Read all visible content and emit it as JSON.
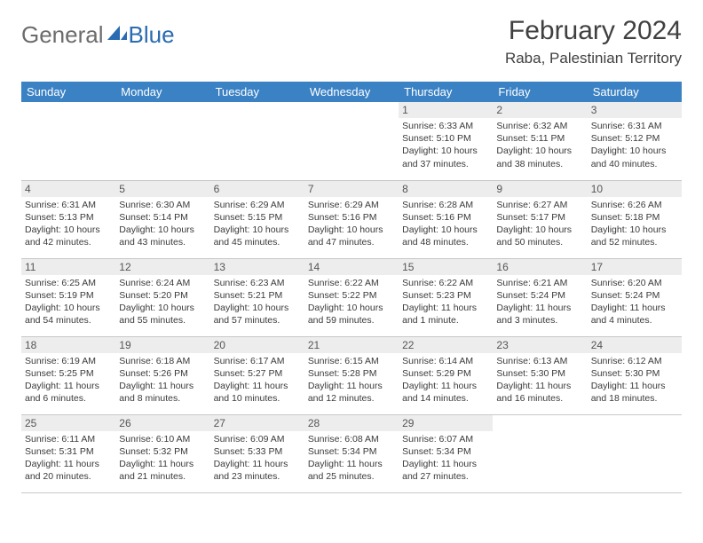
{
  "logo": {
    "text1": "General",
    "text2": "Blue"
  },
  "title": "February 2024",
  "location": "Raba, Palestinian Territory",
  "colors": {
    "header_bg": "#3b82c4",
    "header_text": "#ffffff",
    "daynum_bg": "#ededed",
    "border": "#c8c8c8",
    "logo_gray": "#6c6c6c",
    "logo_blue": "#2a6bb2"
  },
  "weekdays": [
    "Sunday",
    "Monday",
    "Tuesday",
    "Wednesday",
    "Thursday",
    "Friday",
    "Saturday"
  ],
  "weeks": [
    [
      null,
      null,
      null,
      null,
      {
        "n": "1",
        "sunrise": "6:33 AM",
        "sunset": "5:10 PM",
        "daylight": "10 hours and 37 minutes."
      },
      {
        "n": "2",
        "sunrise": "6:32 AM",
        "sunset": "5:11 PM",
        "daylight": "10 hours and 38 minutes."
      },
      {
        "n": "3",
        "sunrise": "6:31 AM",
        "sunset": "5:12 PM",
        "daylight": "10 hours and 40 minutes."
      }
    ],
    [
      {
        "n": "4",
        "sunrise": "6:31 AM",
        "sunset": "5:13 PM",
        "daylight": "10 hours and 42 minutes."
      },
      {
        "n": "5",
        "sunrise": "6:30 AM",
        "sunset": "5:14 PM",
        "daylight": "10 hours and 43 minutes."
      },
      {
        "n": "6",
        "sunrise": "6:29 AM",
        "sunset": "5:15 PM",
        "daylight": "10 hours and 45 minutes."
      },
      {
        "n": "7",
        "sunrise": "6:29 AM",
        "sunset": "5:16 PM",
        "daylight": "10 hours and 47 minutes."
      },
      {
        "n": "8",
        "sunrise": "6:28 AM",
        "sunset": "5:16 PM",
        "daylight": "10 hours and 48 minutes."
      },
      {
        "n": "9",
        "sunrise": "6:27 AM",
        "sunset": "5:17 PM",
        "daylight": "10 hours and 50 minutes."
      },
      {
        "n": "10",
        "sunrise": "6:26 AM",
        "sunset": "5:18 PM",
        "daylight": "10 hours and 52 minutes."
      }
    ],
    [
      {
        "n": "11",
        "sunrise": "6:25 AM",
        "sunset": "5:19 PM",
        "daylight": "10 hours and 54 minutes."
      },
      {
        "n": "12",
        "sunrise": "6:24 AM",
        "sunset": "5:20 PM",
        "daylight": "10 hours and 55 minutes."
      },
      {
        "n": "13",
        "sunrise": "6:23 AM",
        "sunset": "5:21 PM",
        "daylight": "10 hours and 57 minutes."
      },
      {
        "n": "14",
        "sunrise": "6:22 AM",
        "sunset": "5:22 PM",
        "daylight": "10 hours and 59 minutes."
      },
      {
        "n": "15",
        "sunrise": "6:22 AM",
        "sunset": "5:23 PM",
        "daylight": "11 hours and 1 minute."
      },
      {
        "n": "16",
        "sunrise": "6:21 AM",
        "sunset": "5:24 PM",
        "daylight": "11 hours and 3 minutes."
      },
      {
        "n": "17",
        "sunrise": "6:20 AM",
        "sunset": "5:24 PM",
        "daylight": "11 hours and 4 minutes."
      }
    ],
    [
      {
        "n": "18",
        "sunrise": "6:19 AM",
        "sunset": "5:25 PM",
        "daylight": "11 hours and 6 minutes."
      },
      {
        "n": "19",
        "sunrise": "6:18 AM",
        "sunset": "5:26 PM",
        "daylight": "11 hours and 8 minutes."
      },
      {
        "n": "20",
        "sunrise": "6:17 AM",
        "sunset": "5:27 PM",
        "daylight": "11 hours and 10 minutes."
      },
      {
        "n": "21",
        "sunrise": "6:15 AM",
        "sunset": "5:28 PM",
        "daylight": "11 hours and 12 minutes."
      },
      {
        "n": "22",
        "sunrise": "6:14 AM",
        "sunset": "5:29 PM",
        "daylight": "11 hours and 14 minutes."
      },
      {
        "n": "23",
        "sunrise": "6:13 AM",
        "sunset": "5:30 PM",
        "daylight": "11 hours and 16 minutes."
      },
      {
        "n": "24",
        "sunrise": "6:12 AM",
        "sunset": "5:30 PM",
        "daylight": "11 hours and 18 minutes."
      }
    ],
    [
      {
        "n": "25",
        "sunrise": "6:11 AM",
        "sunset": "5:31 PM",
        "daylight": "11 hours and 20 minutes."
      },
      {
        "n": "26",
        "sunrise": "6:10 AM",
        "sunset": "5:32 PM",
        "daylight": "11 hours and 21 minutes."
      },
      {
        "n": "27",
        "sunrise": "6:09 AM",
        "sunset": "5:33 PM",
        "daylight": "11 hours and 23 minutes."
      },
      {
        "n": "28",
        "sunrise": "6:08 AM",
        "sunset": "5:34 PM",
        "daylight": "11 hours and 25 minutes."
      },
      {
        "n": "29",
        "sunrise": "6:07 AM",
        "sunset": "5:34 PM",
        "daylight": "11 hours and 27 minutes."
      },
      null,
      null
    ]
  ],
  "labels": {
    "sunrise": "Sunrise:",
    "sunset": "Sunset:",
    "daylight": "Daylight:"
  }
}
